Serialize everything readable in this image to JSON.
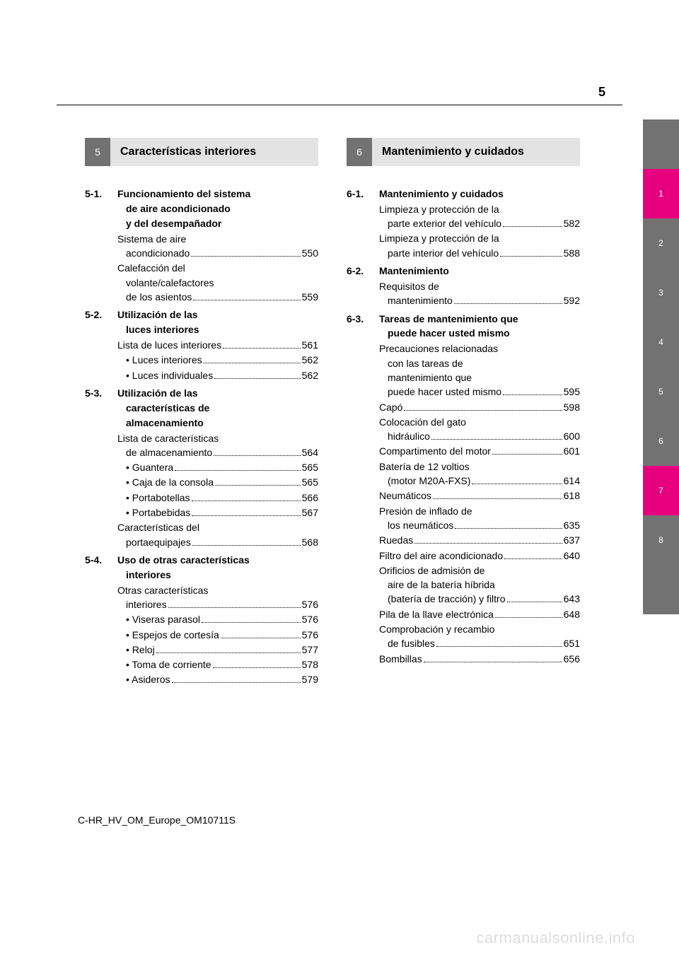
{
  "page_number": "5",
  "footer": "C-HR_HV_OM_Europe_OM10711S",
  "watermark": "carmanualsonline.info",
  "left_section": {
    "num": "5",
    "title": "Características interiores",
    "subsections": [
      {
        "num": "5-1.",
        "title_lines": [
          "Funcionamiento del sistema",
          "de aire acondicionado",
          "y del desempañador"
        ],
        "entries": [
          {
            "lines": [
              "Sistema de aire",
              "acondicionado"
            ],
            "page": "550",
            "indent_last": true
          },
          {
            "lines": [
              "Calefacción del",
              "volante/calefactores",
              "de los asientos"
            ],
            "page": "559",
            "indent_last": true
          }
        ]
      },
      {
        "num": "5-2.",
        "title_lines": [
          "Utilización de las",
          "luces interiores"
        ],
        "entries": [
          {
            "lines": [
              "Lista de luces interiores"
            ],
            "page": "561"
          },
          {
            "lines": [
              "• Luces interiores"
            ],
            "page": "562",
            "bullet_indent": true
          },
          {
            "lines": [
              "• Luces individuales"
            ],
            "page": "562",
            "bullet_indent": true
          }
        ]
      },
      {
        "num": "5-3.",
        "title_lines": [
          "Utilización de las",
          "características de",
          "almacenamiento"
        ],
        "entries": [
          {
            "lines": [
              "Lista de características",
              "de almacenamiento"
            ],
            "page": "564",
            "indent_last": true
          },
          {
            "lines": [
              "• Guantera"
            ],
            "page": "565",
            "bullet_indent": true
          },
          {
            "lines": [
              "• Caja de la consola"
            ],
            "page": "565",
            "bullet_indent": true
          },
          {
            "lines": [
              "• Portabotellas"
            ],
            "page": "566",
            "bullet_indent": true
          },
          {
            "lines": [
              "• Portabebidas"
            ],
            "page": "567",
            "bullet_indent": true
          },
          {
            "lines": [
              "Características del",
              "portaequipajes"
            ],
            "page": "568",
            "indent_last": true
          }
        ]
      },
      {
        "num": "5-4.",
        "title_lines": [
          "Uso de otras características",
          "interiores"
        ],
        "entries": [
          {
            "lines": [
              "Otras características",
              "interiores"
            ],
            "page": "576",
            "indent_last": true
          },
          {
            "lines": [
              "• Viseras parasol"
            ],
            "page": "576",
            "bullet_indent": true
          },
          {
            "lines": [
              "• Espejos de cortesía"
            ],
            "page": "576",
            "bullet_indent": true
          },
          {
            "lines": [
              "• Reloj"
            ],
            "page": "577",
            "bullet_indent": true
          },
          {
            "lines": [
              "• Toma de corriente"
            ],
            "page": "578",
            "bullet_indent": true
          },
          {
            "lines": [
              "• Asideros"
            ],
            "page": "579",
            "bullet_indent": true
          }
        ]
      }
    ]
  },
  "right_section": {
    "num": "6",
    "title": "Mantenimiento y cuidados",
    "subsections": [
      {
        "num": "6-1.",
        "title_lines": [
          "Mantenimiento y cuidados"
        ],
        "entries": [
          {
            "lines": [
              "Limpieza y protección de la",
              "parte exterior del vehículo"
            ],
            "page": "582",
            "indent_last": true
          },
          {
            "lines": [
              "Limpieza y protección de la",
              "parte interior del vehículo"
            ],
            "page": "588",
            "indent_last": true
          }
        ]
      },
      {
        "num": "6-2.",
        "title_lines": [
          "Mantenimiento"
        ],
        "entries": [
          {
            "lines": [
              "Requisitos de",
              "mantenimiento"
            ],
            "page": "592",
            "indent_last": true
          }
        ]
      },
      {
        "num": "6-3.",
        "title_lines": [
          "Tareas de mantenimiento que",
          "puede hacer usted mismo"
        ],
        "entries": [
          {
            "lines": [
              "Precauciones relacionadas",
              "con las tareas de",
              "mantenimiento que",
              "puede hacer usted mismo"
            ],
            "page": "595",
            "indent_last": true
          },
          {
            "lines": [
              "Capó"
            ],
            "page": "598"
          },
          {
            "lines": [
              "Colocación del gato",
              "hidráulico"
            ],
            "page": "600",
            "indent_last": true
          },
          {
            "lines": [
              "Compartimento del motor"
            ],
            "page": "601"
          },
          {
            "lines": [
              "Batería de 12 voltios",
              "(motor M20A-FXS)"
            ],
            "page": "614",
            "indent_last": true
          },
          {
            "lines": [
              "Neumáticos"
            ],
            "page": "618"
          },
          {
            "lines": [
              "Presión de inflado de",
              "los neumáticos"
            ],
            "page": "635",
            "indent_last": true
          },
          {
            "lines": [
              "Ruedas"
            ],
            "page": "637"
          },
          {
            "lines": [
              "Filtro del aire acondicionado"
            ],
            "page": "640"
          },
          {
            "lines": [
              "Orificios de admisión de",
              "aire de la batería híbrida",
              "(batería de tracción) y filtro"
            ],
            "page": "643",
            "indent_last": true
          },
          {
            "lines": [
              "Pila de la llave electrónica"
            ],
            "page": "648"
          },
          {
            "lines": [
              "Comprobación y recambio",
              "de fusibles"
            ],
            "page": "651",
            "indent_last": true
          },
          {
            "lines": [
              "Bombillas"
            ],
            "page": "656"
          }
        ]
      }
    ]
  },
  "tabs": [
    {
      "label": "",
      "color": "blank"
    },
    {
      "label": "1",
      "color": "pink"
    },
    {
      "label": "2",
      "color": "gray"
    },
    {
      "label": "3",
      "color": "gray"
    },
    {
      "label": "4",
      "color": "gray"
    },
    {
      "label": "5",
      "color": "gray"
    },
    {
      "label": "6",
      "color": "gray"
    },
    {
      "label": "7",
      "color": "pink"
    },
    {
      "label": "8",
      "color": "gray"
    },
    {
      "label": "",
      "color": "blank"
    }
  ]
}
